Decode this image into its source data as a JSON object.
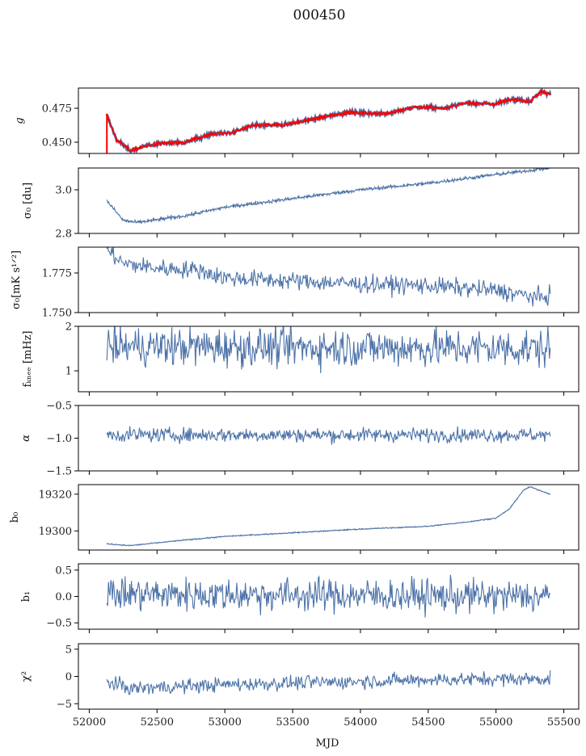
{
  "title": "000450",
  "chart_data": {
    "type": "line",
    "title": "000450",
    "xlabel": "MJD",
    "xlim": [
      51920,
      55610
    ],
    "xticks": [
      52000,
      52500,
      53000,
      53500,
      54000,
      54500,
      55000,
      55500
    ],
    "x_range": [
      52130,
      55400
    ],
    "line_color": "#4c72a8",
    "overlay_color": "#ff0000",
    "panels": [
      {
        "ylabel": "g",
        "ylim": [
          0.4417,
          0.4899
        ],
        "yticks": [
          0.45,
          0.475
        ],
        "ytick_labels": [
          "0.450",
          "0.475"
        ],
        "trend": [
          [
            52130,
            0.47
          ],
          [
            52200,
            0.452
          ],
          [
            52300,
            0.444
          ],
          [
            52500,
            0.449
          ],
          [
            52700,
            0.45
          ],
          [
            52900,
            0.456
          ],
          [
            53050,
            0.457
          ],
          [
            53200,
            0.462
          ],
          [
            53450,
            0.463
          ],
          [
            53700,
            0.468
          ],
          [
            53900,
            0.472
          ],
          [
            54200,
            0.471
          ],
          [
            54400,
            0.476
          ],
          [
            54600,
            0.475
          ],
          [
            54800,
            0.479
          ],
          [
            55000,
            0.478
          ],
          [
            55100,
            0.482
          ],
          [
            55250,
            0.48
          ],
          [
            55330,
            0.487
          ],
          [
            55400,
            0.486
          ]
        ],
        "noise": 0.0006,
        "overlay": true
      },
      {
        "ylabel": "σ₀ [du]",
        "ylim": [
          2.8,
          3.1
        ],
        "yticks": [
          2.8,
          3.0
        ],
        "ytick_labels": [
          "2.8",
          "3.0"
        ],
        "trend": [
          [
            52130,
            2.95
          ],
          [
            52250,
            2.86
          ],
          [
            52350,
            2.85
          ],
          [
            52700,
            2.88
          ],
          [
            53000,
            2.92
          ],
          [
            53500,
            2.96
          ],
          [
            54000,
            3.0
          ],
          [
            54500,
            3.03
          ],
          [
            55000,
            3.07
          ],
          [
            55400,
            3.1
          ]
        ],
        "noise": 0.004
      },
      {
        "ylabel": "σ₀[mK s¹ᐟ²]",
        "ylim": [
          1.75,
          1.7913
        ],
        "yticks": [
          1.75,
          1.775
        ],
        "ytick_labels": [
          "1.750",
          "1.775"
        ],
        "trend": [
          [
            52130,
            1.79
          ],
          [
            52250,
            1.781
          ],
          [
            52500,
            1.778
          ],
          [
            52800,
            1.777
          ],
          [
            53000,
            1.772
          ],
          [
            53500,
            1.77
          ],
          [
            54000,
            1.768
          ],
          [
            54500,
            1.767
          ],
          [
            55000,
            1.764
          ],
          [
            55350,
            1.759
          ],
          [
            55400,
            1.762
          ]
        ],
        "noise": 0.0028
      },
      {
        "ylabel": "fₖₙₑₑ [mHz]",
        "ylim": [
          0.53,
          2.0
        ],
        "yticks": [
          1,
          2
        ],
        "ytick_labels": [
          "1",
          "2"
        ],
        "trend": [
          [
            52130,
            1.55
          ],
          [
            55400,
            1.5
          ]
        ],
        "noise": 0.22
      },
      {
        "ylabel": "α",
        "ylim": [
          -1.5,
          -0.5
        ],
        "yticks": [
          -1.5,
          -1.0,
          -0.5
        ],
        "ytick_labels": [
          "−1.5",
          "−1.0",
          "−0.5"
        ],
        "trend": [
          [
            52130,
            -0.95
          ],
          [
            55400,
            -0.95
          ]
        ],
        "noise": 0.055
      },
      {
        "ylabel": "b₀",
        "ylim": [
          19289.6,
          19325.2
        ],
        "yticks": [
          19300,
          19320
        ],
        "ytick_labels": [
          "19300",
          "19320"
        ],
        "trend": [
          [
            52130,
            19293
          ],
          [
            52300,
            19292
          ],
          [
            52700,
            19295
          ],
          [
            53000,
            19297
          ],
          [
            53500,
            19299
          ],
          [
            54000,
            19301
          ],
          [
            54500,
            19302.5
          ],
          [
            54800,
            19305
          ],
          [
            55000,
            19307
          ],
          [
            55100,
            19312
          ],
          [
            55200,
            19322
          ],
          [
            55250,
            19324
          ],
          [
            55400,
            19320
          ]
        ],
        "noise": 0.15
      },
      {
        "ylabel": "b₁",
        "ylim": [
          -0.62,
          0.62
        ],
        "yticks": [
          -0.5,
          0.0,
          0.5
        ],
        "ytick_labels": [
          "−0.5",
          "0.0",
          "0.5"
        ],
        "trend": [
          [
            52130,
            0.05
          ],
          [
            55400,
            0.0
          ]
        ],
        "noise": 0.16
      },
      {
        "ylabel": "χ²",
        "ylim": [
          -6,
          6
        ],
        "yticks": [
          -5,
          0,
          5
        ],
        "ytick_labels": [
          "−5",
          "0",
          "5"
        ],
        "trend": [
          [
            52130,
            -1
          ],
          [
            52300,
            -2.2
          ],
          [
            53000,
            -1.5
          ],
          [
            53500,
            -1.2
          ],
          [
            54500,
            -0.6
          ],
          [
            55400,
            -0.4
          ]
        ],
        "noise": 0.65
      }
    ]
  }
}
